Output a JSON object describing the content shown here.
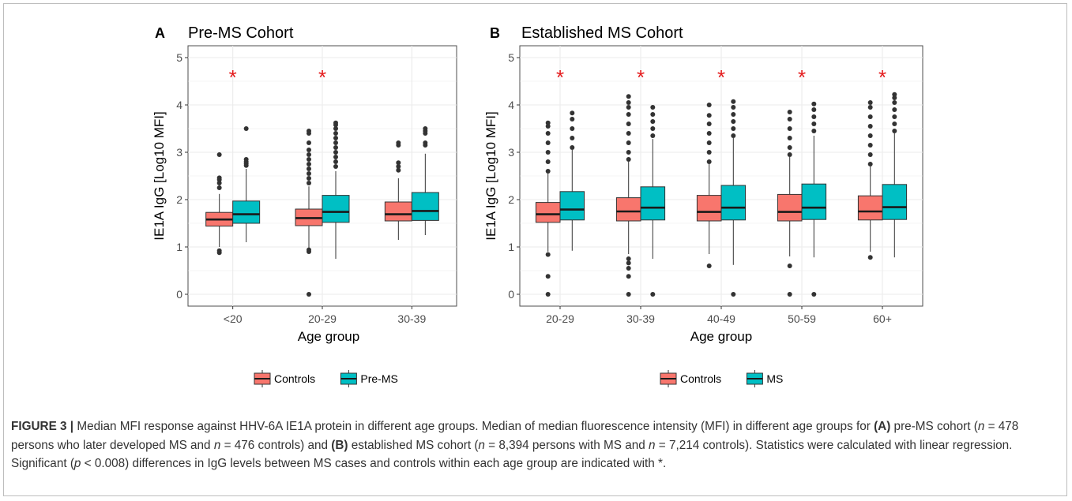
{
  "colors": {
    "controls": "#F8766D",
    "cases": "#00BFC4",
    "asterisk": "#E41A1C",
    "panel_bg": "#FFFFFF",
    "grid": "#EBEBEB"
  },
  "chart_data": [
    {
      "type": "box",
      "panel_letter": "A",
      "title": "Pre-MS Cohort",
      "xlabel": "Age group",
      "ylabel": "IE1A IgG [Log10 MFI]",
      "ylim": [
        -0.25,
        5.25
      ],
      "yticks": [
        "0",
        "1",
        "2",
        "3",
        "4",
        "5"
      ],
      "grid": true,
      "legend_position": "bottom",
      "categories": [
        "<20",
        "20-29",
        "30-39"
      ],
      "significant": [
        true,
        true,
        false
      ],
      "significance_symbol": "*",
      "series": [
        {
          "name": "Controls",
          "color": "#F8766D",
          "boxes": [
            {
              "q1": 1.44,
              "median": 1.58,
              "q3": 1.73,
              "lo": 1.0,
              "hi": 2.12,
              "outliers": [
                0.88,
                0.92,
                2.25,
                2.35,
                2.42,
                2.46,
                2.95
              ]
            },
            {
              "q1": 1.45,
              "median": 1.61,
              "q3": 1.8,
              "lo": 0.98,
              "hi": 2.28,
              "outliers": [
                0.0,
                0.9,
                0.94,
                2.35,
                2.45,
                2.55,
                2.65,
                2.75,
                2.85,
                2.95,
                3.05,
                3.2,
                3.4,
                3.45
              ]
            },
            {
              "q1": 1.55,
              "median": 1.69,
              "q3": 1.95,
              "lo": 1.15,
              "hi": 2.45,
              "outliers": [
                2.62,
                2.7,
                2.78,
                3.15,
                3.2
              ]
            }
          ]
        },
        {
          "name": "Pre-MS",
          "color": "#00BFC4",
          "boxes": [
            {
              "q1": 1.5,
              "median": 1.69,
              "q3": 1.97,
              "lo": 1.1,
              "hi": 2.65,
              "outliers": [
                2.72,
                2.76,
                2.8,
                2.85,
                3.5
              ]
            },
            {
              "q1": 1.52,
              "median": 1.74,
              "q3": 2.09,
              "lo": 0.75,
              "hi": 2.6,
              "outliers": [
                2.7,
                2.8,
                2.9,
                3.0,
                3.1,
                3.2,
                3.3,
                3.4,
                3.5,
                3.58,
                3.62
              ]
            },
            {
              "q1": 1.56,
              "median": 1.76,
              "q3": 2.15,
              "lo": 1.25,
              "hi": 2.97,
              "outliers": [
                3.15,
                3.2,
                3.4,
                3.45,
                3.5
              ]
            }
          ]
        }
      ]
    },
    {
      "type": "box",
      "panel_letter": "B",
      "title": "Established MS Cohort",
      "xlabel": "Age group",
      "ylabel": "IE1A IgG [Log10 MFI]",
      "ylim": [
        -0.25,
        5.25
      ],
      "yticks": [
        "0",
        "1",
        "2",
        "3",
        "4",
        "5"
      ],
      "grid": true,
      "legend_position": "bottom",
      "categories": [
        "20-29",
        "30-39",
        "40-49",
        "50-59",
        "60+"
      ],
      "significant": [
        true,
        true,
        true,
        true,
        true
      ],
      "significance_symbol": "*",
      "series": [
        {
          "name": "Controls",
          "color": "#F8766D",
          "boxes": [
            {
              "q1": 1.52,
              "median": 1.69,
              "q3": 1.94,
              "lo": 0.9,
              "hi": 2.57,
              "outliers": [
                0.0,
                0.38,
                0.84,
                2.6,
                2.8,
                3.0,
                3.2,
                3.4,
                3.55,
                3.62
              ]
            },
            {
              "q1": 1.55,
              "median": 1.75,
              "q3": 2.04,
              "lo": 0.85,
              "hi": 2.8,
              "outliers": [
                0.0,
                0.38,
                0.55,
                0.66,
                0.75,
                2.85,
                3.0,
                3.2,
                3.4,
                3.6,
                3.8,
                3.95,
                4.05,
                4.18
              ]
            },
            {
              "q1": 1.55,
              "median": 1.74,
              "q3": 2.09,
              "lo": 0.85,
              "hi": 2.75,
              "outliers": [
                0.6,
                2.8,
                3.0,
                3.2,
                3.4,
                3.6,
                3.78,
                4.0
              ]
            },
            {
              "q1": 1.55,
              "median": 1.74,
              "q3": 2.11,
              "lo": 0.8,
              "hi": 2.9,
              "outliers": [
                0.0,
                0.6,
                2.95,
                3.1,
                3.3,
                3.5,
                3.7,
                3.85
              ]
            },
            {
              "q1": 1.57,
              "median": 1.75,
              "q3": 2.08,
              "lo": 0.9,
              "hi": 2.7,
              "outliers": [
                0.78,
                2.75,
                2.95,
                3.15,
                3.35,
                3.55,
                3.75,
                3.95,
                4.05
              ]
            }
          ]
        },
        {
          "name": "MS",
          "color": "#00BFC4",
          "boxes": [
            {
              "q1": 1.57,
              "median": 1.79,
              "q3": 2.17,
              "lo": 0.92,
              "hi": 3.05,
              "outliers": [
                3.1,
                3.3,
                3.5,
                3.7,
                3.83
              ]
            },
            {
              "q1": 1.57,
              "median": 1.83,
              "q3": 2.27,
              "lo": 0.75,
              "hi": 3.28,
              "outliers": [
                0.0,
                3.35,
                3.5,
                3.65,
                3.8,
                3.95
              ]
            },
            {
              "q1": 1.57,
              "median": 1.83,
              "q3": 2.3,
              "lo": 0.62,
              "hi": 3.3,
              "outliers": [
                0.0,
                3.35,
                3.5,
                3.65,
                3.8,
                3.95,
                4.07
              ]
            },
            {
              "q1": 1.58,
              "median": 1.83,
              "q3": 2.33,
              "lo": 0.78,
              "hi": 3.35,
              "outliers": [
                0.0,
                3.45,
                3.6,
                3.75,
                3.9,
                4.02
              ]
            },
            {
              "q1": 1.58,
              "median": 1.84,
              "q3": 2.32,
              "lo": 0.78,
              "hi": 3.4,
              "outliers": [
                3.45,
                3.6,
                3.75,
                3.9,
                4.05,
                4.15,
                4.22
              ]
            }
          ]
        }
      ]
    }
  ],
  "caption": {
    "figure_label": "FIGURE 3 |",
    "s1": " Median MFI response against HHV-6A IE1A protein in different age groups. Median of median fluorescence intensity (MFI) in different age groups for ",
    "bA": "(A)",
    "s2": " pre-MS cohort (",
    "n1": "n",
    "s3": " = 478 persons who later developed MS and ",
    "n2": "n",
    "s4": " = 476 controls) and ",
    "bB": "(B)",
    "s5": " established MS cohort (",
    "n3": "n",
    "s6": " = 8,394 persons with MS and ",
    "n4": "n",
    "s7": " = 7,214 controls). Statistics were calculated with linear regression. Significant (",
    "p": "p",
    "s8": " < 0.008) differences in IgG levels between MS cases and controls within each age group are indicated with *."
  }
}
